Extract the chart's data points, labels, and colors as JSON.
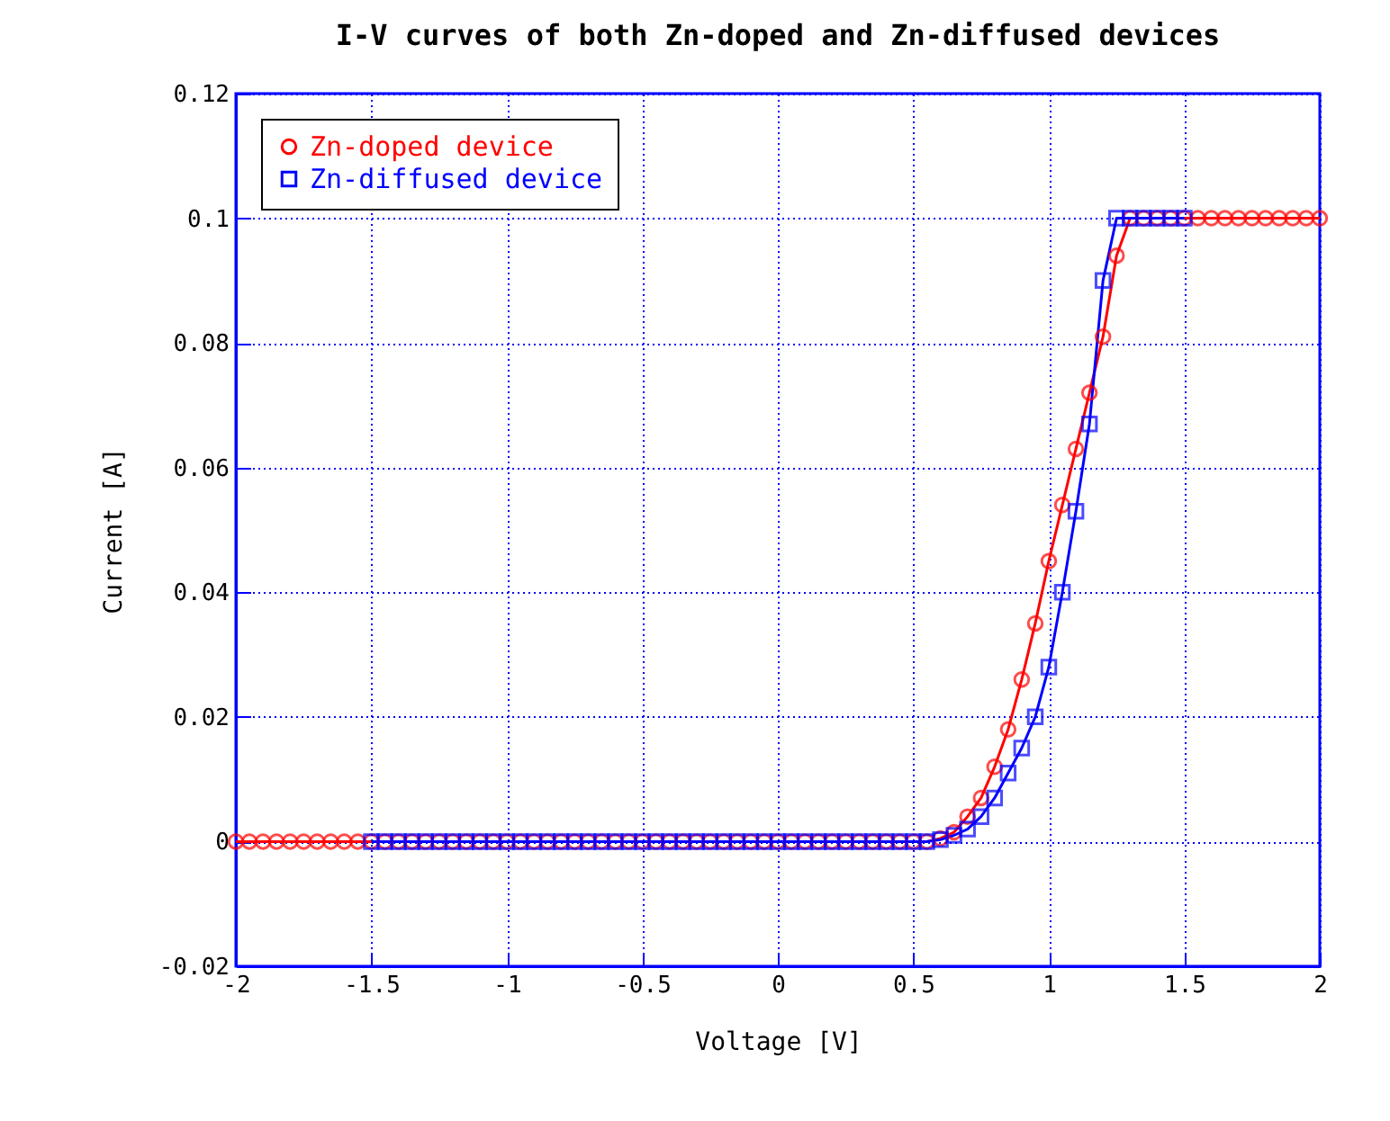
{
  "chart_data": {
    "type": "line",
    "title": "I-V curves of both Zn-doped and Zn-diffused devices",
    "xlabel": "Voltage [V]",
    "ylabel": "Current [A]",
    "xlim": [
      -2,
      2
    ],
    "xticks": [
      -2,
      -1.5,
      -1,
      -0.5,
      0,
      0.5,
      1,
      1.5,
      2
    ],
    "ylim": [
      -0.02,
      0.12
    ],
    "yticks": [
      -0.02,
      0,
      0.02,
      0.04,
      0.06,
      0.08,
      0.1,
      0.12
    ],
    "grid": true,
    "legend": "top left",
    "line_style": "solid",
    "series": [
      {
        "name": "Zn-doped device",
        "color": "#ff0000",
        "marker": "circle",
        "x": [
          -2,
          -1.95,
          -1.9,
          -1.85,
          -1.8,
          -1.75,
          -1.7,
          -1.65,
          -1.6,
          -1.55,
          -1.5,
          -1.45,
          -1.4,
          -1.35,
          -1.3,
          -1.25,
          -1.2,
          -1.15,
          -1.1,
          -1.05,
          -1,
          -0.95,
          -0.9,
          -0.85,
          -0.8,
          -0.75,
          -0.7,
          -0.65,
          -0.6,
          -0.55,
          -0.5,
          -0.45,
          -0.4,
          -0.35,
          -0.3,
          -0.25,
          -0.2,
          -0.15,
          -0.1,
          -0.05,
          0,
          0.05,
          0.1,
          0.15,
          0.2,
          0.25,
          0.3,
          0.35,
          0.4,
          0.45,
          0.5,
          0.55,
          0.6,
          0.65,
          0.7,
          0.75,
          0.8,
          0.85,
          0.9,
          0.95,
          1,
          1.05,
          1.1,
          1.15,
          1.2,
          1.25,
          1.3,
          1.35,
          1.4,
          1.45,
          1.5,
          1.55,
          1.6,
          1.65,
          1.7,
          1.75,
          1.8,
          1.85,
          1.9,
          1.95,
          2
        ],
        "values": [
          0,
          0,
          0,
          0,
          0,
          0,
          0,
          0,
          0,
          0,
          0,
          0,
          0,
          0,
          0,
          0,
          0,
          0,
          0,
          0,
          0,
          0,
          0,
          0,
          0,
          0,
          0,
          0,
          0,
          0,
          0,
          0,
          0,
          0,
          0,
          0,
          0,
          0,
          0,
          0,
          0,
          0,
          0,
          0,
          0,
          0,
          0,
          0,
          0,
          0,
          0,
          0,
          0.0005,
          0.0015,
          0.004,
          0.007,
          0.012,
          0.018,
          0.026,
          0.035,
          0.045,
          0.054,
          0.063,
          0.072,
          0.081,
          0.094,
          0.1,
          0.1,
          0.1,
          0.1,
          0.1,
          0.1,
          0.1,
          0.1,
          0.1,
          0.1,
          0.1,
          0.1,
          0.1,
          0.1,
          0.1
        ]
      },
      {
        "name": "Zn-diffused device",
        "color": "#0000ff",
        "marker": "square",
        "x": [
          -1.5,
          -1.45,
          -1.4,
          -1.35,
          -1.3,
          -1.25,
          -1.2,
          -1.15,
          -1.1,
          -1.05,
          -1,
          -0.95,
          -0.9,
          -0.85,
          -0.8,
          -0.75,
          -0.7,
          -0.65,
          -0.6,
          -0.55,
          -0.5,
          -0.45,
          -0.4,
          -0.35,
          -0.3,
          -0.25,
          -0.2,
          -0.15,
          -0.1,
          -0.05,
          0,
          0.05,
          0.1,
          0.15,
          0.2,
          0.25,
          0.3,
          0.35,
          0.4,
          0.45,
          0.5,
          0.55,
          0.6,
          0.65,
          0.7,
          0.75,
          0.8,
          0.85,
          0.9,
          0.95,
          1,
          1.05,
          1.1,
          1.15,
          1.2,
          1.25,
          1.3,
          1.35,
          1.4,
          1.45,
          1.5
        ],
        "values": [
          0,
          0,
          0,
          0,
          0,
          0,
          0,
          0,
          0,
          0,
          0,
          0,
          0,
          0,
          0,
          0,
          0,
          0,
          0,
          0,
          0,
          0,
          0,
          0,
          0,
          0,
          0,
          0,
          0,
          0,
          0,
          0,
          0,
          0,
          0,
          0,
          0,
          0,
          0,
          0,
          0,
          0,
          0.0003,
          0.001,
          0.002,
          0.004,
          0.007,
          0.011,
          0.015,
          0.02,
          0.028,
          0.04,
          0.053,
          0.067,
          0.09,
          0.1,
          0.1,
          0.1,
          0.1,
          0.1,
          0.1
        ]
      }
    ]
  }
}
